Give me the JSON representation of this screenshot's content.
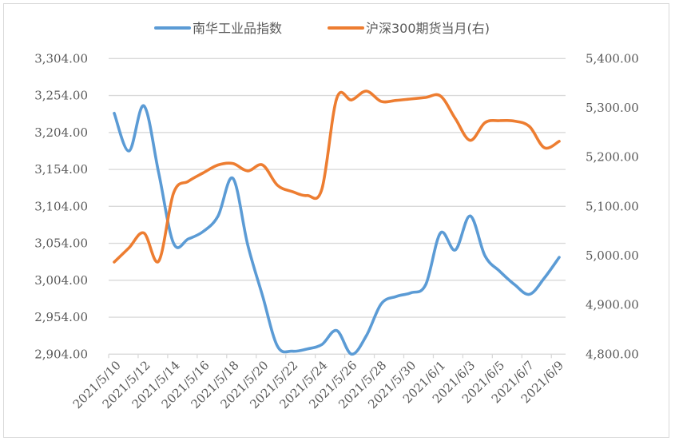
{
  "chart_data": {
    "type": "line",
    "title": "",
    "x": [
      "2021/5/10",
      "2021/5/11",
      "2021/5/12",
      "2021/5/13",
      "2021/5/14",
      "2021/5/15",
      "2021/5/16",
      "2021/5/17",
      "2021/5/18",
      "2021/5/19",
      "2021/5/20",
      "2021/5/21",
      "2021/5/22",
      "2021/5/23",
      "2021/5/24",
      "2021/5/25",
      "2021/5/26",
      "2021/5/27",
      "2021/5/28",
      "2021/5/29",
      "2021/5/30",
      "2021/5/31",
      "2021/6/1",
      "2021/6/2",
      "2021/6/3",
      "2021/6/4",
      "2021/6/5",
      "2021/6/6",
      "2021/6/7",
      "2021/6/8",
      "2021/6/9"
    ],
    "x_tick_labels": [
      "2021/5/10",
      "2021/5/12",
      "2021/5/14",
      "2021/5/16",
      "2021/5/18",
      "2021/5/20",
      "2021/5/22",
      "2021/5/24",
      "2021/5/26",
      "2021/5/28",
      "2021/5/30",
      "2021/6/1",
      "2021/6/3",
      "2021/6/5",
      "2021/6/7",
      "2021/6/9"
    ],
    "series": [
      {
        "name": "南华工业品指数",
        "axis": "left",
        "color": "#5B9BD5",
        "values": [
          3230,
          3179,
          3240,
          3149,
          3054,
          3060,
          3070,
          3091,
          3142,
          3052,
          2983,
          2915,
          2908,
          2911,
          2917,
          2936,
          2904,
          2929,
          2972,
          2982,
          2987,
          2998,
          3068,
          3045,
          3091,
          3037,
          3016,
          2998,
          2985,
          3007,
          3035
        ]
      },
      {
        "name": "沪深300期货当月(右)",
        "axis": "right",
        "color": "#ED7D31",
        "values": [
          4987,
          5016,
          5046,
          4989,
          5127,
          5151,
          5168,
          5184,
          5187,
          5172,
          5184,
          5143,
          5130,
          5122,
          5135,
          5319,
          5316,
          5334,
          5313,
          5315,
          5318,
          5321,
          5324,
          5278,
          5234,
          5270,
          5274,
          5273,
          5262,
          5219,
          5232
        ]
      }
    ],
    "y_left": {
      "ylim": [
        2904,
        3304
      ],
      "ticks": [
        3304,
        3254,
        3204,
        3154,
        3104,
        3054,
        3004,
        2954,
        2904
      ],
      "tick_labels": [
        "3,304.00",
        "3,254.00",
        "3,204.00",
        "3,154.00",
        "3,104.00",
        "3,054.00",
        "3,004.00",
        "2,954.00",
        "2,904.00"
      ]
    },
    "y_right": {
      "ylim": [
        4800,
        5400
      ],
      "ticks": [
        5400,
        5300,
        5200,
        5100,
        5000,
        4900,
        4800
      ],
      "tick_labels": [
        "5,400.00",
        "5,300.00",
        "5,200.00",
        "5,100.00",
        "5,000.00",
        "4,900.00",
        "4,800.00"
      ]
    },
    "grid": true,
    "legend": "top-center",
    "xlabel": "",
    "ylabel": ""
  }
}
